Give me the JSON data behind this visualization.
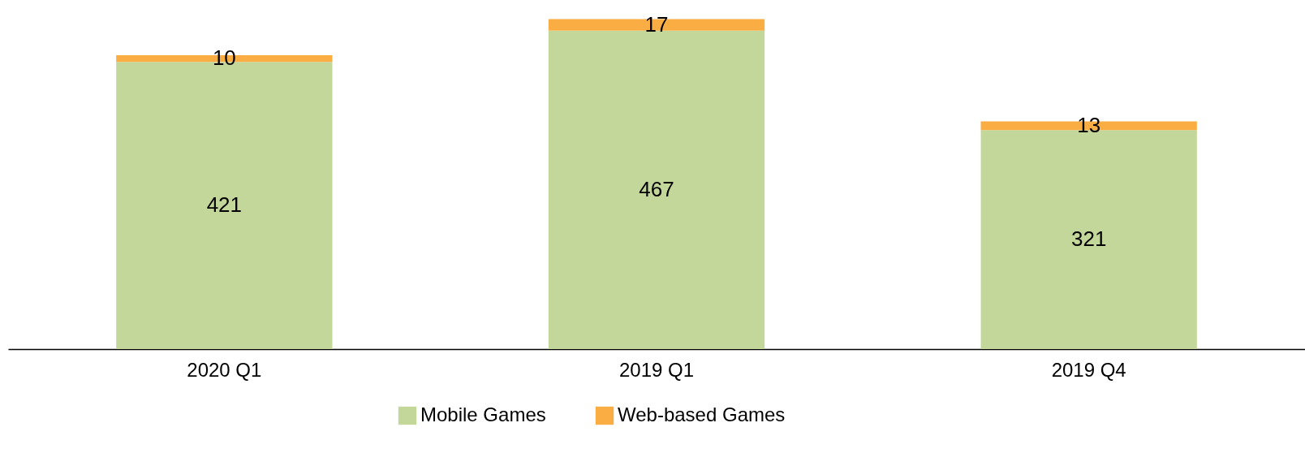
{
  "chart_data": {
    "type": "bar",
    "stacked": true,
    "categories": [
      "2020 Q1",
      "2019 Q1",
      "2019 Q4"
    ],
    "series": [
      {
        "name": "Mobile Games",
        "color": "#c4d79b",
        "values": [
          421,
          467,
          321
        ]
      },
      {
        "name": "Web-based Games",
        "color": "#f9ad43",
        "values": [
          10,
          17,
          13
        ]
      }
    ],
    "data_labels": true,
    "legend": "bottom",
    "grid": false,
    "tick_labels": "x"
  }
}
